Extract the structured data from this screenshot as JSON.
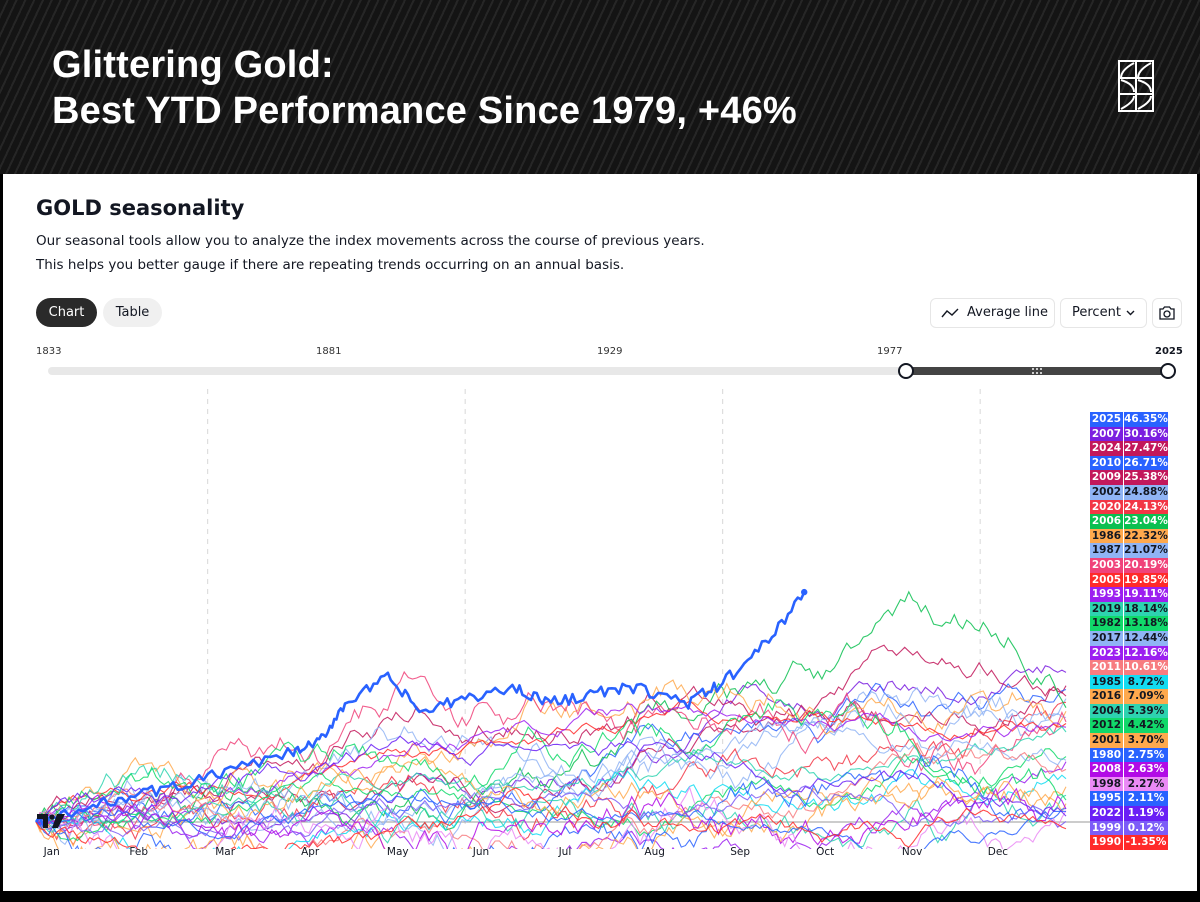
{
  "banner": {
    "title_line1": "Glittering Gold:",
    "title_line2": "Best YTD Performance Since 1979, +46%",
    "logo_icon": "brand-logo-icon"
  },
  "header": {
    "title": "GOLD seasonality",
    "description_line1": "Our seasonal tools allow you to analyze the index movements across the course of previous years.",
    "description_line2": "This helps you better gauge if there are repeating trends occurring on an annual basis."
  },
  "tabs": [
    {
      "label": "Chart",
      "active": true
    },
    {
      "label": "Table",
      "active": false
    }
  ],
  "toolbar": {
    "average_line_label": "Average line",
    "average_line_icon": "trend-line-icon",
    "unit_select_value": "Percent",
    "unit_select_icon": "chevron-down-icon",
    "screenshot_icon": "camera-icon"
  },
  "year_range": {
    "tick_labels": [
      "1833",
      "1881",
      "1929",
      "1977",
      "2025"
    ],
    "selected_start": "1977",
    "selected_end": "2025"
  },
  "watermark": "tradingview-logo-icon",
  "chart_data": {
    "type": "line",
    "title": "GOLD seasonality",
    "xlabel": "",
    "ylabel": "Percent",
    "x_tick_labels": [
      "Jan",
      "Feb",
      "Mar",
      "Apr",
      "May",
      "Jun",
      "Jul",
      "Aug",
      "Sep",
      "Oct",
      "Nov",
      "Dec"
    ],
    "x_range_months": [
      0,
      12
    ],
    "ylim": [
      -36,
      50
    ],
    "grid": "vertical dashed at Mar, Jun, Sep, Dec",
    "legend_position": "right",
    "highlighted_series": "2025",
    "series": [
      {
        "name": "2025",
        "value": "46.35%",
        "end": 46.35,
        "color": "#2962ff",
        "text": "#ffffff",
        "end_month": 8.95
      },
      {
        "name": "2007",
        "value": "30.16%",
        "end": 30.16,
        "color": "#7b1fe0",
        "text": "#ffffff"
      },
      {
        "name": "2024",
        "value": "27.47%",
        "end": 27.47,
        "color": "#c2185b",
        "text": "#ffffff"
      },
      {
        "name": "2010",
        "value": "26.71%",
        "end": 26.71,
        "color": "#2962ff",
        "text": "#ffffff"
      },
      {
        "name": "2009",
        "value": "25.38%",
        "end": 25.38,
        "color": "#c2185b",
        "text": "#ffffff"
      },
      {
        "name": "2002",
        "value": "24.88%",
        "end": 24.88,
        "color": "#90b4f5",
        "text": "#131722"
      },
      {
        "name": "2020",
        "value": "24.13%",
        "end": 24.13,
        "color": "#f23645",
        "text": "#ffffff"
      },
      {
        "name": "2006",
        "value": "23.04%",
        "end": 23.04,
        "color": "#0bbf50",
        "text": "#ffffff"
      },
      {
        "name": "1986",
        "value": "22.32%",
        "end": 22.32,
        "color": "#ffa94d",
        "text": "#131722"
      },
      {
        "name": "1987",
        "value": "21.07%",
        "end": 21.07,
        "color": "#90b4f5",
        "text": "#131722"
      },
      {
        "name": "2003",
        "value": "20.19%",
        "end": 20.19,
        "color": "#f0437a",
        "text": "#ffffff"
      },
      {
        "name": "2005",
        "value": "19.85%",
        "end": 19.85,
        "color": "#ff2a2a",
        "text": "#ffffff"
      },
      {
        "name": "1993",
        "value": "19.11%",
        "end": 19.11,
        "color": "#9c1ff0",
        "text": "#ffffff"
      },
      {
        "name": "2019",
        "value": "18.14%",
        "end": 18.14,
        "color": "#2ed3b0",
        "text": "#131722"
      },
      {
        "name": "1982",
        "value": "13.18%",
        "end": 13.18,
        "color": "#11d96a",
        "text": "#131722"
      },
      {
        "name": "2017",
        "value": "12.44%",
        "end": 12.44,
        "color": "#90b4f5",
        "text": "#131722"
      },
      {
        "name": "2023",
        "value": "12.16%",
        "end": 12.16,
        "color": "#9c1ff0",
        "text": "#ffffff"
      },
      {
        "name": "2011",
        "value": "10.61%",
        "end": 10.61,
        "color": "#f77c80",
        "text": "#ffffff"
      },
      {
        "name": "1985",
        "value": "8.72%",
        "end": 8.72,
        "color": "#12dcf2",
        "text": "#131722"
      },
      {
        "name": "2016",
        "value": "7.09%",
        "end": 7.09,
        "color": "#ffa94d",
        "text": "#131722"
      },
      {
        "name": "2004",
        "value": "5.39%",
        "end": 5.39,
        "color": "#2ed3b0",
        "text": "#131722"
      },
      {
        "name": "2012",
        "value": "4.42%",
        "end": 4.42,
        "color": "#11d96a",
        "text": "#131722"
      },
      {
        "name": "2001",
        "value": "3.70%",
        "end": 3.7,
        "color": "#ffa94d",
        "text": "#131722"
      },
      {
        "name": "1980",
        "value": "2.75%",
        "end": 2.75,
        "color": "#2962ff",
        "text": "#ffffff"
      },
      {
        "name": "2008",
        "value": "2.63%",
        "end": 2.63,
        "color": "#b20be6",
        "text": "#ffffff"
      },
      {
        "name": "1998",
        "value": "2.27%",
        "end": 2.27,
        "color": "#ea8af5",
        "text": "#131722"
      },
      {
        "name": "1995",
        "value": "2.11%",
        "end": 2.11,
        "color": "#2962ff",
        "text": "#ffffff"
      },
      {
        "name": "2022",
        "value": "1.19%",
        "end": 1.19,
        "color": "#6a1ff5",
        "text": "#ffffff"
      },
      {
        "name": "1999",
        "value": "0.12%",
        "end": 0.12,
        "color": "#7c5cf7",
        "text": "#ffffff"
      },
      {
        "name": "1990",
        "value": "-1.35%",
        "end": -1.35,
        "color": "#ff2a2a",
        "text": "#ffffff"
      }
    ]
  }
}
